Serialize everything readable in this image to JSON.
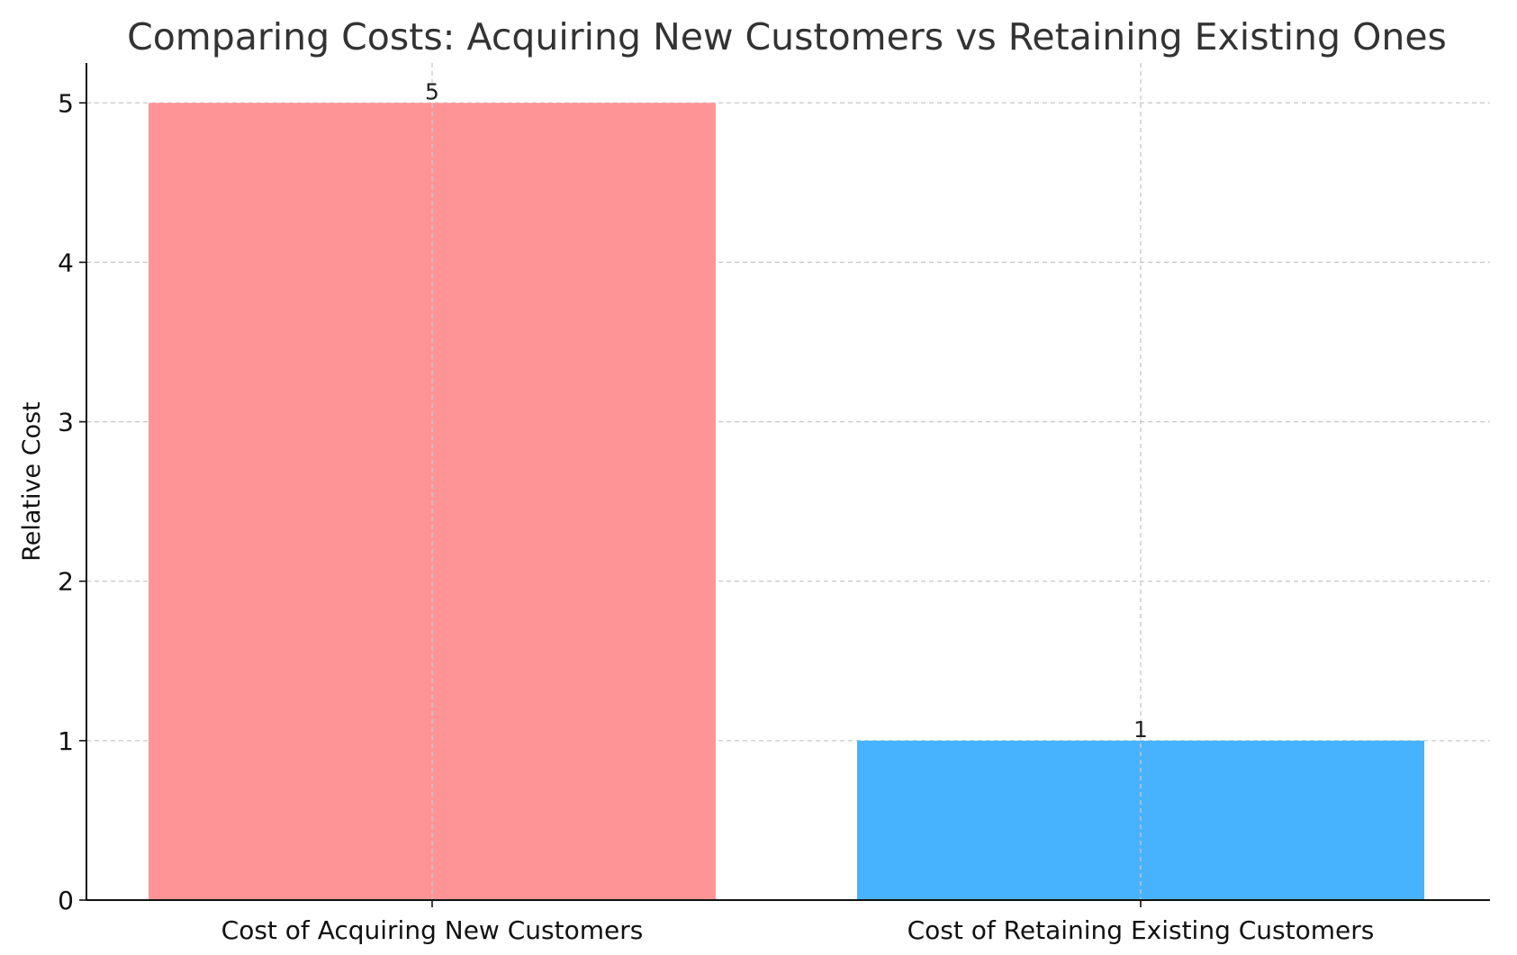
{
  "chart_data": {
    "type": "bar",
    "title": "Comparing Costs: Acquiring New Customers vs Retaining Existing Ones",
    "xlabel": "",
    "ylabel": "Relative Cost",
    "categories": [
      "Cost of Acquiring New Customers",
      "Cost of Retaining Existing Customers"
    ],
    "values": [
      5,
      1
    ],
    "data_labels": [
      "5",
      "1"
    ],
    "colors": [
      "#ff9496",
      "#47b3ff"
    ],
    "ylim": [
      0,
      5.25
    ],
    "yticks": [
      0,
      1,
      2,
      3,
      4,
      5
    ],
    "ytick_labels": [
      "0",
      "1",
      "2",
      "3",
      "4",
      "5"
    ],
    "grid": true,
    "grid_color": "#c8c8c8",
    "text_color": "#333333",
    "legend": "none"
  }
}
